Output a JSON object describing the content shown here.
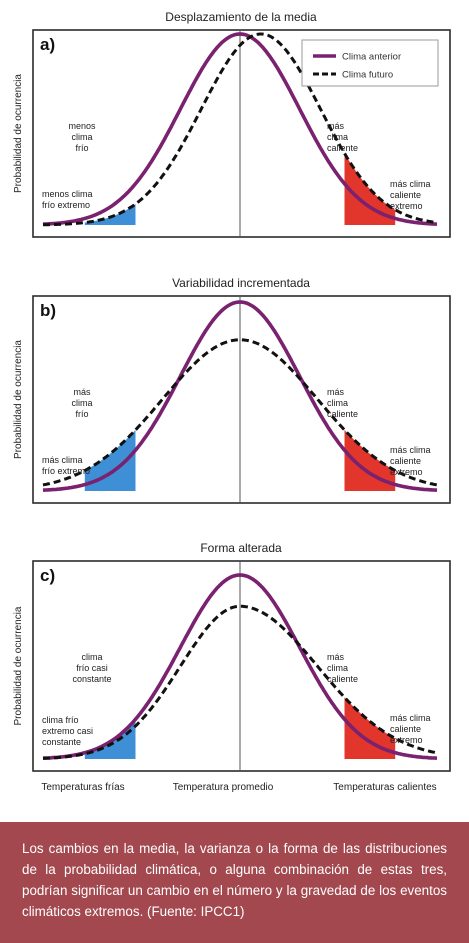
{
  "chart_data": [
    {
      "type": "line",
      "panel": "a)",
      "title": "Desplazamiento de la media",
      "ylabel": "Probabilidad de ocurrencia",
      "legend": {
        "placement": "top-right",
        "entries": [
          "Clima anterior",
          "Clima futuro"
        ]
      },
      "series": [
        {
          "name": "Clima anterior",
          "style": "solid",
          "color": "#7a2170",
          "mean": 0.0,
          "sd": 1.0,
          "peak": 1.0
        },
        {
          "name": "Clima futuro",
          "style": "dashed",
          "color": "#111111",
          "mean": 0.35,
          "sd": 1.0,
          "peak": 1.0
        }
      ],
      "regions": [
        {
          "side": "cold",
          "color": "#3f8fd6",
          "from": -2.6,
          "to": -1.75,
          "curve": "Clima futuro"
        },
        {
          "side": "hot",
          "color": "#e2352b",
          "from": 1.75,
          "to": 2.6,
          "curve": "Clima futuro"
        }
      ],
      "annotations": {
        "cold": [
          "menos",
          "clima",
          "frío"
        ],
        "cold_extreme": [
          "menos clima",
          "frío extremo"
        ],
        "hot": [
          "más",
          "clima",
          "caliente"
        ],
        "hot_extreme": [
          "más clima",
          "caliente",
          "extremo"
        ]
      },
      "xlim": [
        -3.3,
        3.3
      ]
    },
    {
      "type": "line",
      "panel": "b)",
      "title": "Variabilidad incrementada",
      "ylabel": "Probabilidad de ocurrencia",
      "series": [
        {
          "name": "Clima anterior",
          "style": "solid",
          "color": "#7a2170",
          "mean": 0.0,
          "sd": 1.0,
          "peak": 1.0
        },
        {
          "name": "Clima futuro",
          "style": "dashed",
          "color": "#111111",
          "mean": 0.0,
          "sd": 1.3,
          "peak": 0.8
        }
      ],
      "regions": [
        {
          "side": "cold",
          "color": "#3f8fd6",
          "from": -2.6,
          "to": -1.75,
          "curve": "Clima futuro"
        },
        {
          "side": "hot",
          "color": "#e2352b",
          "from": 1.75,
          "to": 2.6,
          "curve": "Clima futuro"
        }
      ],
      "annotations": {
        "cold": [
          "más",
          "clima",
          "frío"
        ],
        "cold_extreme": [
          "más clima",
          "frío extremo"
        ],
        "hot": [
          "más",
          "clima",
          "caliente"
        ],
        "hot_extreme": [
          "más clima",
          "caliente",
          "extremo"
        ]
      },
      "xlim": [
        -3.3,
        3.3
      ]
    },
    {
      "type": "line",
      "panel": "c)",
      "title": "Forma alterada",
      "ylabel": "Probabilidad de ocurrencia",
      "series": [
        {
          "name": "Clima anterior",
          "style": "solid",
          "color": "#7a2170",
          "mean": 0.0,
          "sd": 1.0,
          "peak": 1.0
        },
        {
          "name": "Clima futuro",
          "style": "dashed",
          "color": "#111111",
          "mean": 0.0,
          "sd_left": 1.0,
          "sd_right": 1.3,
          "peak": 0.83
        }
      ],
      "regions": [
        {
          "side": "cold",
          "color": "#3f8fd6",
          "from": -2.6,
          "to": -1.75,
          "curve": "Clima anterior"
        },
        {
          "side": "hot",
          "color": "#e2352b",
          "from": 1.75,
          "to": 2.6,
          "curve": "Clima futuro"
        }
      ],
      "annotations": {
        "cold": [
          "clima",
          "frío casi",
          "constante"
        ],
        "cold_extreme": [
          "clima frío",
          "extremo casi",
          "constante"
        ],
        "hot": [
          "más",
          "clima",
          "caliente"
        ],
        "hot_extreme": [
          "más clima",
          "caliente",
          "extremo"
        ]
      },
      "xlim": [
        -3.3,
        3.3
      ]
    }
  ],
  "x_axis_labels": [
    "Temperaturas frías",
    "Temperatura promedio",
    "Temperaturas calientes"
  ],
  "caption": "Los cambios en la media, la varianza o la forma de las distribuciones de la probabilidad climática, o alguna combinación de estas tres, podrían significar un cambio en el número y la gravedad de los eventos climáticos extremos. (Fuente: IPCC1)"
}
